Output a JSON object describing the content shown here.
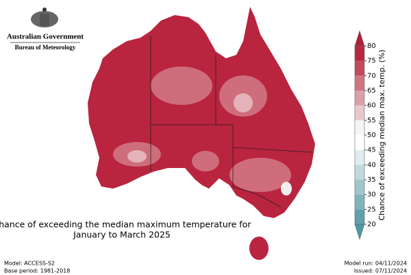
{
  "header": {
    "line1": "Australian Government",
    "line2": "Bureau of Meteorology"
  },
  "title": [
    "Chance of exceeding the median maximum temperature for",
    "January to March 2025"
  ],
  "legend": {
    "label": "Chance of exceeding median max. temp. (%)",
    "ticks": [
      20,
      25,
      30,
      35,
      40,
      45,
      50,
      55,
      60,
      65,
      70,
      75,
      80
    ],
    "colors": [
      "#5fa1aa",
      "#80b4bb",
      "#a0c6cc",
      "#c0d9dd",
      "#e0ecee",
      "#ffffff",
      "#f5f5f5",
      "#e8c8cc",
      "#dc9fa6",
      "#d07581",
      "#c44a5b",
      "#b8273f"
    ],
    "low_color": "#4a9aa6",
    "high_color": "#b01f3a"
  },
  "footer": {
    "model": "Model: ACCESS-S2",
    "base_period": "Base period: 1981-2018",
    "model_run": "Model run: 04/11/2024",
    "issued": "Issued: 07/11/2024"
  }
}
